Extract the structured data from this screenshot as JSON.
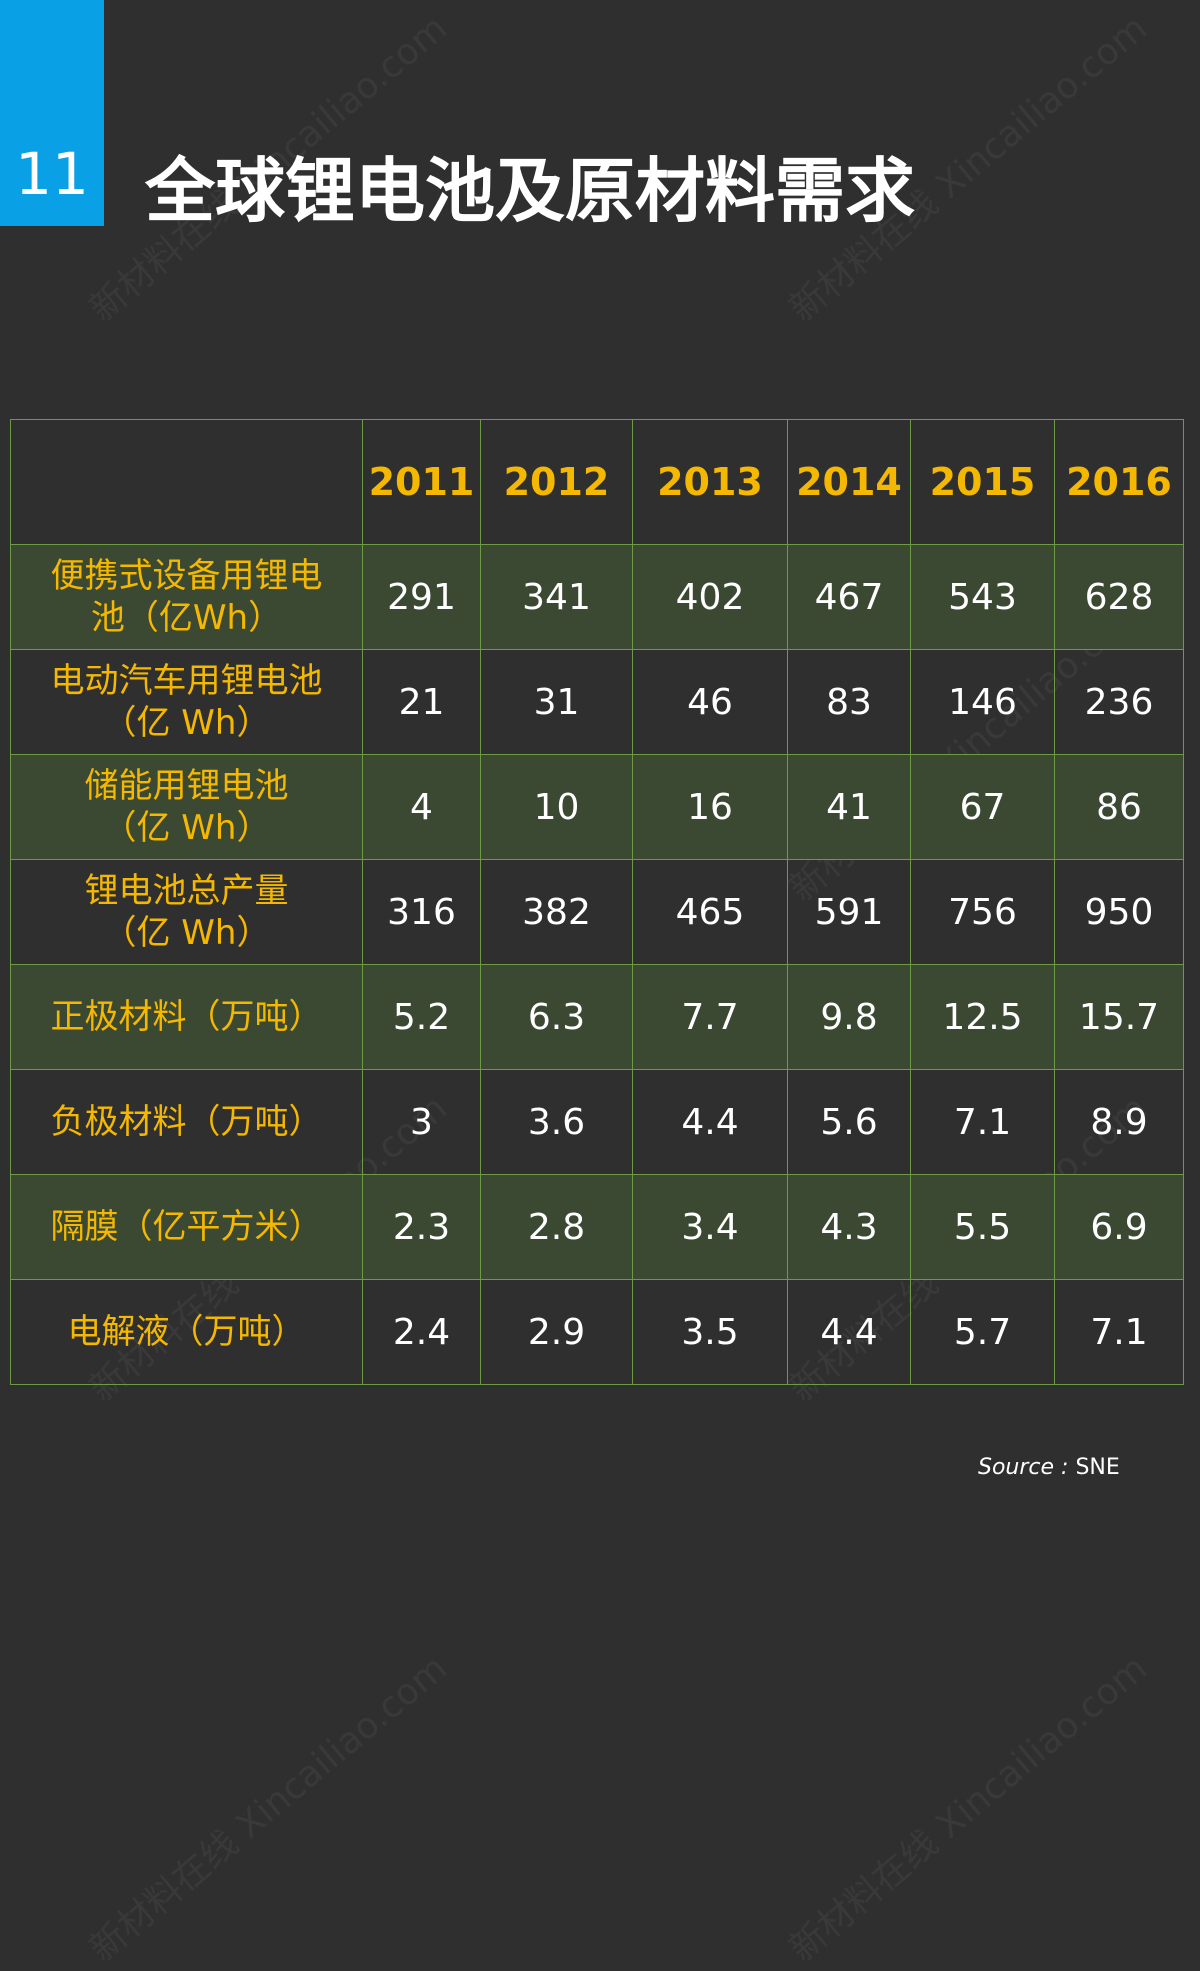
{
  "header": {
    "number": "11",
    "title": "全球锂电池及原材料需求"
  },
  "watermark": "新材料在线 Xincailiao.com",
  "table": {
    "columns": [
      "2011",
      "2012",
      "2013",
      "2014",
      "2015",
      "2016"
    ],
    "rows": [
      {
        "label": "便携式设备用锂电\n池（亿Wh）",
        "values": [
          "291",
          "341",
          "402",
          "467",
          "543",
          "628"
        ]
      },
      {
        "label": "电动汽车用锂电池\n（亿 Wh）",
        "values": [
          "21",
          "31",
          "46",
          "83",
          "146",
          "236"
        ]
      },
      {
        "label": "储能用锂电池\n（亿 Wh）",
        "values": [
          "4",
          "10",
          "16",
          "41",
          "67",
          "86"
        ]
      },
      {
        "label": "锂电池总产量\n（亿 Wh）",
        "values": [
          "316",
          "382",
          "465",
          "591",
          "756",
          "950"
        ]
      },
      {
        "label": "正极材料（万吨）",
        "values": [
          "5.2",
          "6.3",
          "7.7",
          "9.8",
          "12.5",
          "15.7"
        ]
      },
      {
        "label": "负极材料（万吨）",
        "values": [
          "3",
          "3.6",
          "4.4",
          "5.6",
          "7.1",
          "8.9"
        ]
      },
      {
        "label": "隔膜（亿平方米）",
        "values": [
          "2.3",
          "2.8",
          "3.4",
          "4.3",
          "5.5",
          "6.9"
        ]
      },
      {
        "label": "电解液（万吨）",
        "values": [
          "2.4",
          "2.9",
          "3.5",
          "4.4",
          "5.7",
          "7.1"
        ]
      }
    ]
  },
  "source": {
    "label": "Source :",
    "value": "SNE"
  }
}
